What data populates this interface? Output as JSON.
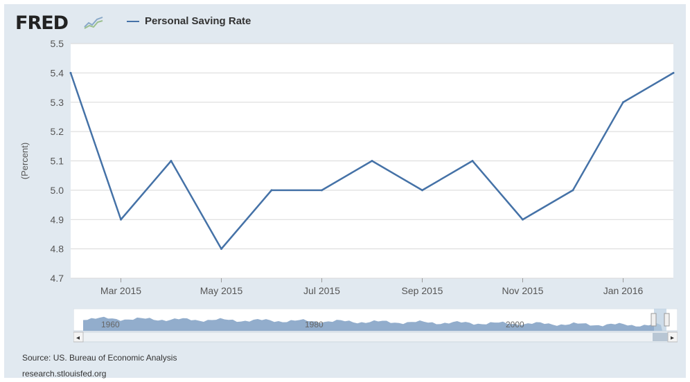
{
  "header": {
    "logo_text": "FRED",
    "logo_icon": "chart-line-icon"
  },
  "legend": {
    "series_label": "Personal Saving Rate",
    "color": "#4572a7"
  },
  "chart_data": {
    "type": "line",
    "title": "",
    "ylabel": "(Percent)",
    "xlabel": "",
    "ylim": [
      4.7,
      5.5
    ],
    "yticks": [
      "4.7",
      "4.8",
      "4.9",
      "5.0",
      "5.1",
      "5.2",
      "5.3",
      "5.4",
      "5.5"
    ],
    "xticks": [
      "Mar 2015",
      "May 2015",
      "Jul 2015",
      "Sep 2015",
      "Nov 2015",
      "Jan 2016"
    ],
    "x": [
      "2015-02",
      "2015-03",
      "2015-04",
      "2015-05",
      "2015-06",
      "2015-07",
      "2015-08",
      "2015-09",
      "2015-10",
      "2015-11",
      "2015-12",
      "2016-01",
      "2016-02"
    ],
    "series": [
      {
        "name": "Personal Saving Rate",
        "values": [
          5.4,
          4.9,
          5.1,
          4.8,
          5.0,
          5.0,
          5.1,
          5.0,
          5.1,
          4.9,
          5.0,
          5.3,
          5.4
        ]
      }
    ],
    "grid": true,
    "legend_position": "top-left"
  },
  "navigator": {
    "labels": [
      "1960",
      "1980",
      "2000"
    ],
    "scroll_left": "◂",
    "scroll_right": "▸"
  },
  "footer": {
    "source": "Source: US. Bureau of Economic Analysis",
    "site": "research.stlouisfed.org"
  },
  "colors": {
    "background": "#e1e9f0",
    "plot_background": "#ffffff",
    "series": "#4572a7",
    "grid": "#d8d8d8"
  }
}
